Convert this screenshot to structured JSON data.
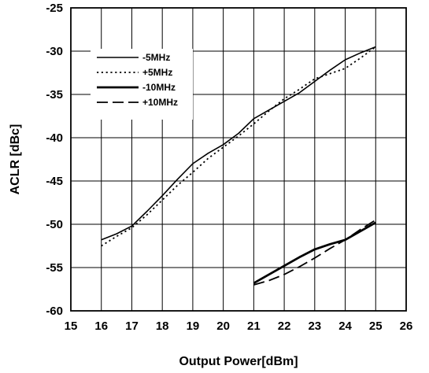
{
  "chart_data": {
    "type": "line",
    "xlabel": "Output Power[dBm]",
    "ylabel": "ACLR [dBc]",
    "xlim": [
      15,
      26
    ],
    "ylim": [
      -60,
      -25
    ],
    "xticks": [
      "15",
      "16",
      "17",
      "18",
      "19",
      "20",
      "21",
      "22",
      "23",
      "24",
      "25",
      "26"
    ],
    "yticks": [
      "-25",
      "-30",
      "-35",
      "-40",
      "-45",
      "-50",
      "-55",
      "-60"
    ],
    "grid": true,
    "legend_position": "top-left",
    "series": [
      {
        "name": "-5MHz",
        "style": "solid",
        "x": [
          16,
          16.5,
          17,
          17.5,
          18,
          18.5,
          19,
          19.5,
          20,
          20.5,
          21,
          21.5,
          22,
          22.5,
          23,
          23.5,
          24,
          24.5,
          25
        ],
        "y": [
          -51.8,
          -51.1,
          -50.2,
          -48.5,
          -46.7,
          -44.8,
          -43.0,
          -41.8,
          -40.8,
          -39.5,
          -37.8,
          -36.8,
          -35.8,
          -34.8,
          -33.5,
          -32.2,
          -31.0,
          -30.2,
          -29.5
        ]
      },
      {
        "name": "+5MHz",
        "style": "dotted",
        "x": [
          16,
          16.5,
          17,
          17.5,
          18,
          18.5,
          19,
          19.5,
          20,
          20.5,
          21,
          21.5,
          22,
          22.5,
          23,
          23.5,
          24,
          24.5,
          25
        ],
        "y": [
          -52.5,
          -51.4,
          -50.4,
          -48.9,
          -47.2,
          -45.5,
          -44.0,
          -42.4,
          -41.1,
          -39.8,
          -38.4,
          -36.9,
          -35.5,
          -34.4,
          -33.2,
          -32.6,
          -32.0,
          -30.8,
          -29.5
        ]
      },
      {
        "name": "-10MHz",
        "style": "thick",
        "x": [
          21,
          21.5,
          22,
          22.5,
          23,
          23.5,
          24,
          24.5,
          25
        ],
        "y": [
          -56.8,
          -55.8,
          -54.8,
          -53.8,
          -52.9,
          -52.3,
          -51.8,
          -50.8,
          -49.8
        ]
      },
      {
        "name": "+10MHz",
        "style": "dashed",
        "x": [
          21,
          21.5,
          22,
          22.5,
          23,
          23.5,
          24,
          24.5,
          25
        ],
        "y": [
          -57.0,
          -56.5,
          -55.8,
          -54.9,
          -53.9,
          -52.8,
          -51.8,
          -50.6,
          -49.5
        ]
      }
    ]
  }
}
